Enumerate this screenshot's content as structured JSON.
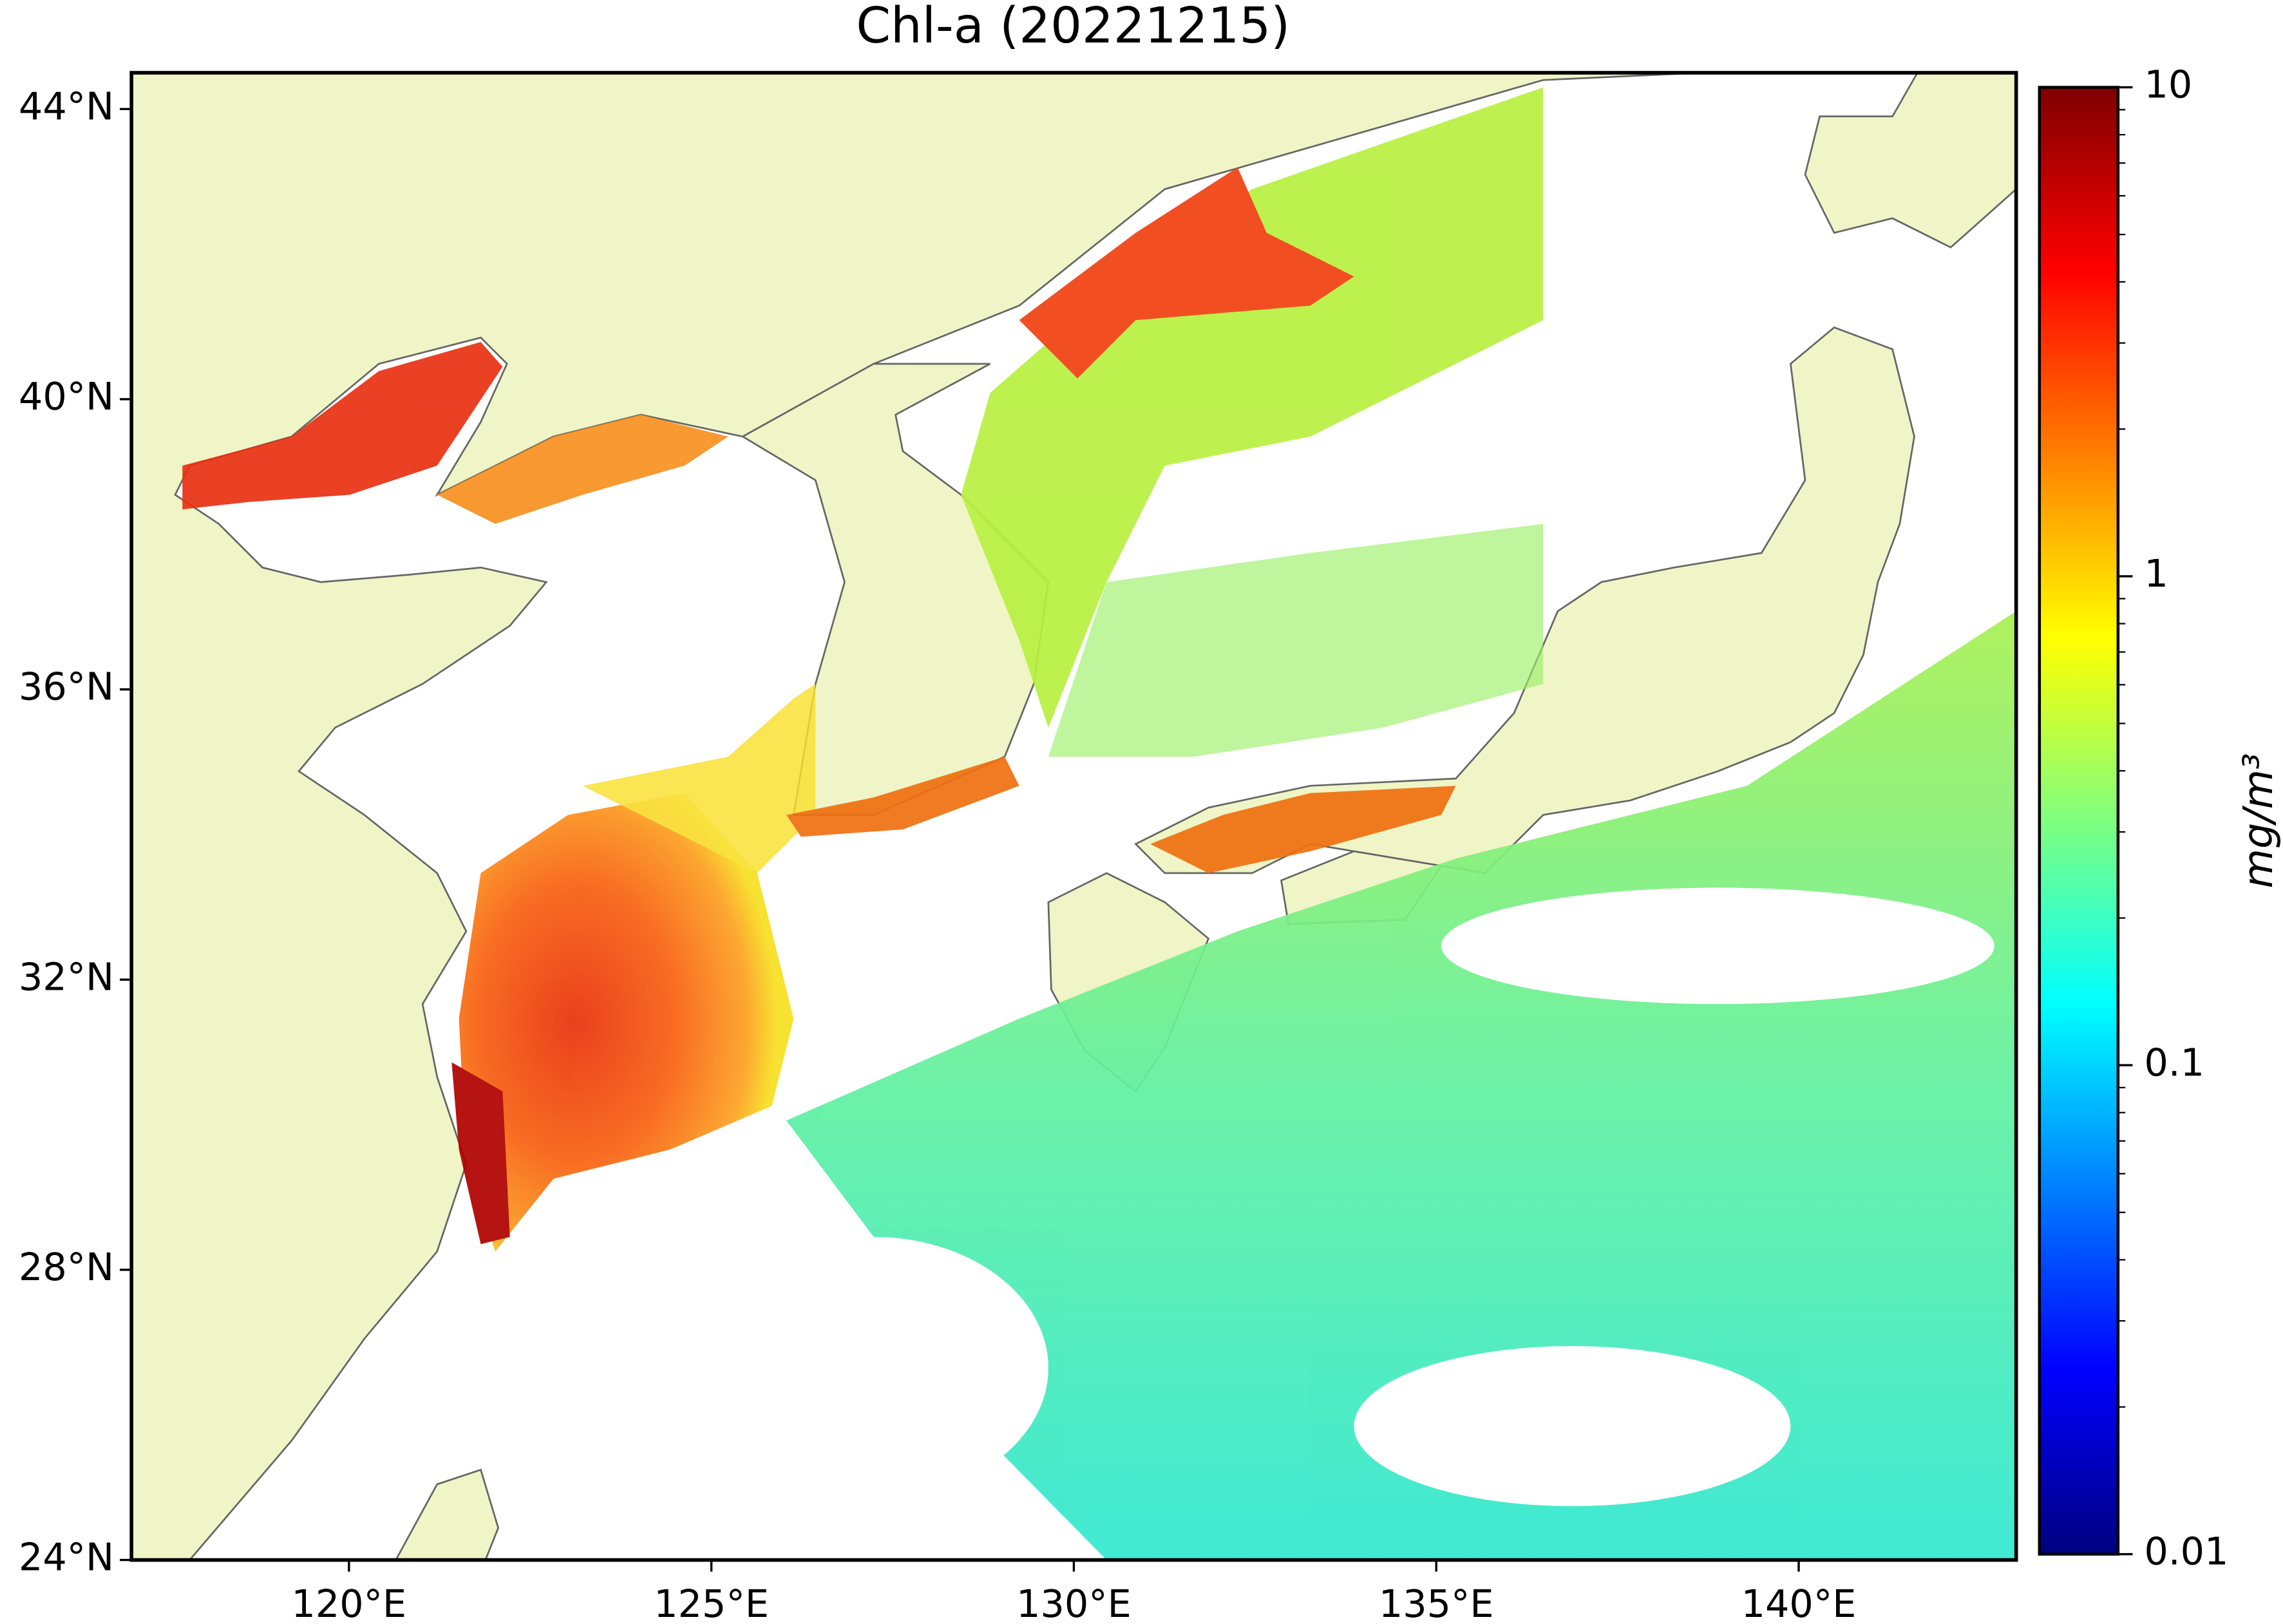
{
  "chart_data": {
    "type": "map",
    "title": "Chl-a (20221215)",
    "xlim": [
      117,
      143
    ],
    "ylim": [
      24,
      44.5
    ],
    "xticks": [
      {
        "value": 120,
        "label": "120°E"
      },
      {
        "value": 125,
        "label": "125°E"
      },
      {
        "value": 130,
        "label": "130°E"
      },
      {
        "value": 135,
        "label": "135°E"
      },
      {
        "value": 140,
        "label": "140°E"
      }
    ],
    "yticks": [
      {
        "value": 24,
        "label": "24°N"
      },
      {
        "value": 28,
        "label": "28°N"
      },
      {
        "value": 32,
        "label": "32°N"
      },
      {
        "value": 36,
        "label": "36°N"
      },
      {
        "value": 40,
        "label": "40°N"
      },
      {
        "value": 44,
        "label": "44°N"
      }
    ],
    "colorbar": {
      "scale": "log",
      "colormap": "jet",
      "lim": [
        0.01,
        10
      ],
      "ticks": [
        0.01,
        0.1,
        1,
        10
      ],
      "label": "mg/m³"
    }
  }
}
